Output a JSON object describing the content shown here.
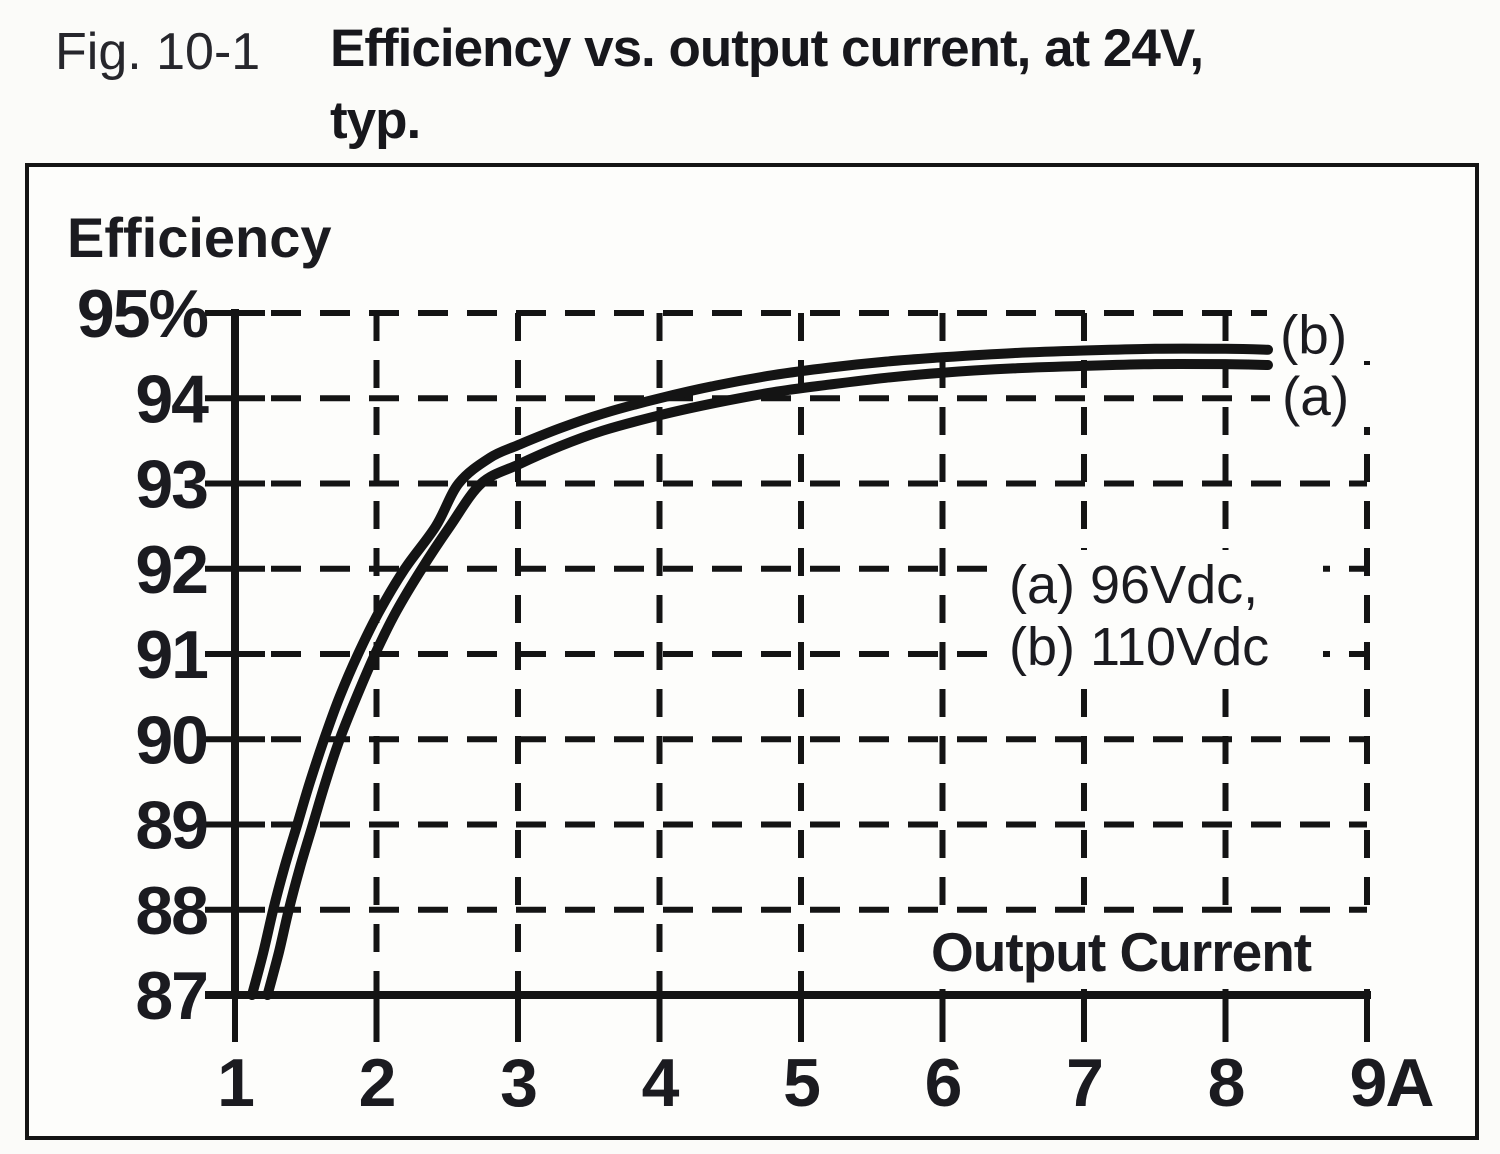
{
  "figure": {
    "fig_label": "Fig. 10-1",
    "title_line1": "Efficiency vs. output current, at 24V,",
    "title_line2": "typ."
  },
  "chart_data": {
    "type": "line",
    "title": "Efficiency vs. output current, at 24V, typ.",
    "ylabel": "Efficiency",
    "xlabel": "Output Current",
    "x_unit": "A",
    "y_unit": "%",
    "xlim": [
      1,
      9
    ],
    "ylim": [
      87,
      95
    ],
    "grid": "dashed",
    "legend_position": "inside-right",
    "legend_lines": [
      "(a) 96Vdc,",
      "(b) 110Vdc"
    ],
    "xticks": {
      "values": [
        1,
        2,
        3,
        4,
        5,
        6,
        7,
        8,
        9
      ],
      "labels": [
        "1",
        "2",
        "3",
        "4",
        "5",
        "6",
        "7",
        "8",
        "9A"
      ]
    },
    "yticks": {
      "values": [
        87,
        88,
        89,
        90,
        91,
        92,
        93,
        94,
        95
      ],
      "labels": [
        "87",
        "88",
        "89",
        "90",
        "91",
        "92",
        "93",
        "94",
        "95%"
      ]
    },
    "series": [
      {
        "name": "(b) 110Vdc",
        "curve_label": "(b)",
        "points": [
          [
            1.12,
            87
          ],
          [
            1.2,
            87.5
          ],
          [
            1.27,
            88
          ],
          [
            1.35,
            88.5
          ],
          [
            1.44,
            89
          ],
          [
            1.53,
            89.5
          ],
          [
            1.63,
            90
          ],
          [
            1.74,
            90.5
          ],
          [
            1.87,
            91
          ],
          [
            2.02,
            91.5
          ],
          [
            2.2,
            92
          ],
          [
            2.42,
            92.5
          ],
          [
            2.58,
            93
          ],
          [
            2.8,
            93.3
          ],
          [
            3.0,
            93.45
          ],
          [
            3.3,
            93.65
          ],
          [
            3.6,
            93.82
          ],
          [
            4.0,
            94.0
          ],
          [
            4.4,
            94.15
          ],
          [
            4.8,
            94.27
          ],
          [
            5.2,
            94.36
          ],
          [
            5.6,
            94.43
          ],
          [
            6.0,
            94.48
          ],
          [
            6.5,
            94.53
          ],
          [
            7.0,
            94.56
          ],
          [
            7.5,
            94.58
          ],
          [
            8.0,
            94.58
          ],
          [
            8.3,
            94.57
          ]
        ]
      },
      {
        "name": "(a) 96Vdc",
        "curve_label": "(a)",
        "points": [
          [
            1.23,
            87
          ],
          [
            1.31,
            87.5
          ],
          [
            1.38,
            88
          ],
          [
            1.46,
            88.5
          ],
          [
            1.55,
            89
          ],
          [
            1.64,
            89.5
          ],
          [
            1.74,
            90
          ],
          [
            1.86,
            90.5
          ],
          [
            1.99,
            91
          ],
          [
            2.14,
            91.5
          ],
          [
            2.32,
            92
          ],
          [
            2.52,
            92.5
          ],
          [
            2.74,
            93
          ],
          [
            3.0,
            93.22
          ],
          [
            3.3,
            93.44
          ],
          [
            3.6,
            93.62
          ],
          [
            4.0,
            93.8
          ],
          [
            4.35,
            93.93
          ],
          [
            4.8,
            94.07
          ],
          [
            5.2,
            94.16
          ],
          [
            5.6,
            94.24
          ],
          [
            6.0,
            94.3
          ],
          [
            6.5,
            94.35
          ],
          [
            7.0,
            94.38
          ],
          [
            7.5,
            94.4
          ],
          [
            8.0,
            94.4
          ],
          [
            8.3,
            94.39
          ]
        ]
      }
    ]
  },
  "colors": {
    "ink": "#141414",
    "text": "#1b1b20",
    "background": "#fbfbf9",
    "plot_background": "#fdfdfb"
  }
}
